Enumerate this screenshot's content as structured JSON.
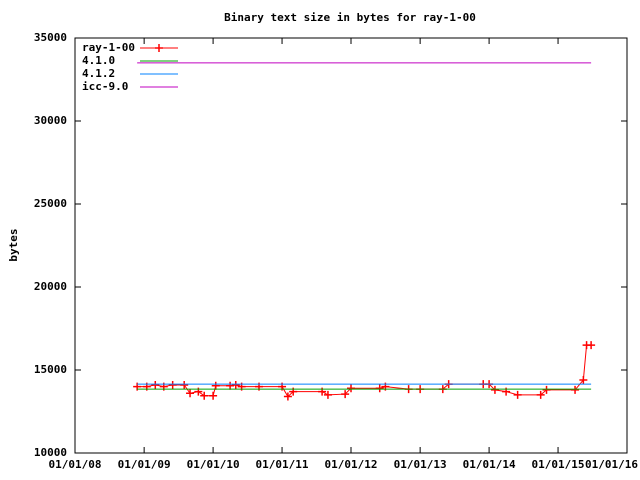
{
  "chart_data": {
    "type": "line",
    "title": "Binary text size in bytes for ray-1-00",
    "ylabel": "bytes",
    "ylim": [
      10000,
      35000
    ],
    "yticks": [
      10000,
      15000,
      20000,
      25000,
      30000,
      35000
    ],
    "xlim": [
      "2008-01-01",
      "2016-01-01"
    ],
    "xticks": [
      {
        "value": "2008-01-01",
        "label": "01/01/08"
      },
      {
        "value": "2009-01-01",
        "label": "01/01/09"
      },
      {
        "value": "2010-01-01",
        "label": "01/01/10"
      },
      {
        "value": "2011-01-01",
        "label": "01/01/11"
      },
      {
        "value": "2012-01-01",
        "label": "01/01/12"
      },
      {
        "value": "2013-01-01",
        "label": "01/01/13"
      },
      {
        "value": "2014-01-01",
        "label": "01/01/14"
      },
      {
        "value": "2015-01-01",
        "label": "01/01/15"
      },
      {
        "value": "2016-01-01",
        "label": "01/01/16"
      }
    ],
    "legend": "top-left",
    "series": [
      {
        "name": "ray-1-00",
        "color": "#ff0000",
        "points": true,
        "x": [
          "2008-11-25",
          "2009-01-15",
          "2009-03-01",
          "2009-04-15",
          "2009-06-01",
          "2009-08-01",
          "2009-09-01",
          "2009-10-15",
          "2009-11-15",
          "2010-01-01",
          "2010-01-15",
          "2010-04-01",
          "2010-05-01",
          "2010-06-01",
          "2010-09-01",
          "2011-01-01",
          "2011-02-01",
          "2011-03-01",
          "2011-08-01",
          "2011-09-01",
          "2011-12-01",
          "2012-01-01",
          "2012-06-01",
          "2012-07-01",
          "2012-11-01",
          "2013-01-01",
          "2013-05-01",
          "2013-06-01",
          "2013-12-01",
          "2014-01-01",
          "2014-02-01",
          "2014-04-01",
          "2014-06-01",
          "2014-10-01",
          "2014-11-01",
          "2015-04-01",
          "2015-05-15",
          "2015-06-01",
          "2015-06-25"
        ],
        "values": [
          14000,
          14000,
          14100,
          14000,
          14100,
          14100,
          13600,
          13700,
          13450,
          13450,
          14050,
          14050,
          14100,
          14000,
          14000,
          14000,
          13400,
          13700,
          13700,
          13500,
          13550,
          13900,
          13900,
          14000,
          13850,
          13850,
          13850,
          14150,
          14150,
          14150,
          13800,
          13700,
          13500,
          13500,
          13800,
          13800,
          14400,
          16500,
          16500
        ]
      },
      {
        "name": "4.1.0",
        "color": "#00a000",
        "x": [
          "2008-11-25",
          "2015-06-25"
        ],
        "values": [
          13850,
          13850
        ]
      },
      {
        "name": "4.1.2",
        "color": "#0080ff",
        "x": [
          "2008-11-25",
          "2015-06-25"
        ],
        "values": [
          14150,
          14150
        ]
      },
      {
        "name": "icc-9.0",
        "color": "#c000c0",
        "x": [
          "2008-11-25",
          "2015-06-25"
        ],
        "values": [
          33500,
          33500
        ]
      }
    ]
  }
}
